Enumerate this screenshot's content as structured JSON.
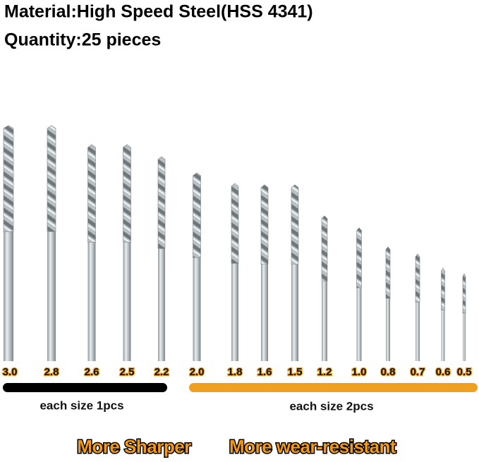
{
  "header": {
    "material": "Material:High Speed Steel(HSS 4341)",
    "quantity": "Quantity:25 pieces"
  },
  "sizes": [
    "3.0",
    "2.8",
    "2.6",
    "2.5",
    "2.2",
    "2.0",
    "1.8",
    "1.6",
    "1.5",
    "1.2",
    "1.0",
    "0.8",
    "0.7",
    "0.6",
    "0.5"
  ],
  "groups": [
    "each size 1pcs",
    "each size 2pcs"
  ],
  "taglines": [
    "More Sharper",
    "More wear-resistant"
  ]
}
